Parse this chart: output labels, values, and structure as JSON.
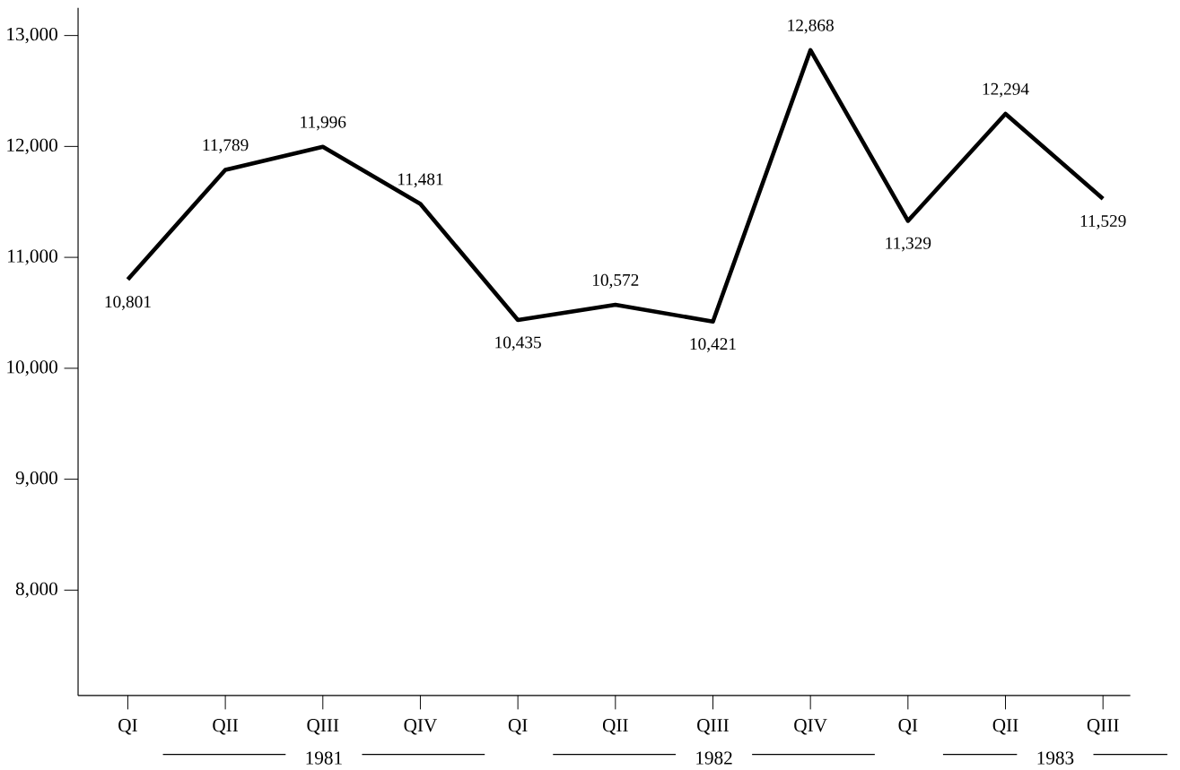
{
  "chart_data": {
    "type": "line",
    "categories": [
      "QI",
      "QII",
      "QIII",
      "QIV",
      "QI",
      "QII",
      "QIII",
      "QIV",
      "QI",
      "QII",
      "QIII"
    ],
    "values": [
      10801,
      11789,
      11996,
      11481,
      10435,
      10572,
      10421,
      12868,
      11329,
      12294,
      11529
    ],
    "value_labels": [
      "10,801",
      "11,789",
      "11,996",
      "11,481",
      "10,435",
      "10,572",
      "10,421",
      "12,868",
      "11,329",
      "12,294",
      "11,529"
    ],
    "color": "#000000",
    "ylim": [
      7050,
      13250
    ],
    "yticks": [
      {
        "value": 8000,
        "label": "8,000"
      },
      {
        "value": 9000,
        "label": "9,000"
      },
      {
        "value": 10000,
        "label": "10,000"
      },
      {
        "value": 11000,
        "label": "11,000"
      },
      {
        "value": 12000,
        "label": "12,000"
      },
      {
        "value": 13000,
        "label": "13,000"
      }
    ],
    "annotations": [
      "1981",
      "1982",
      "1983"
    ],
    "grid": false,
    "marker": "none",
    "line_style": "solid"
  }
}
